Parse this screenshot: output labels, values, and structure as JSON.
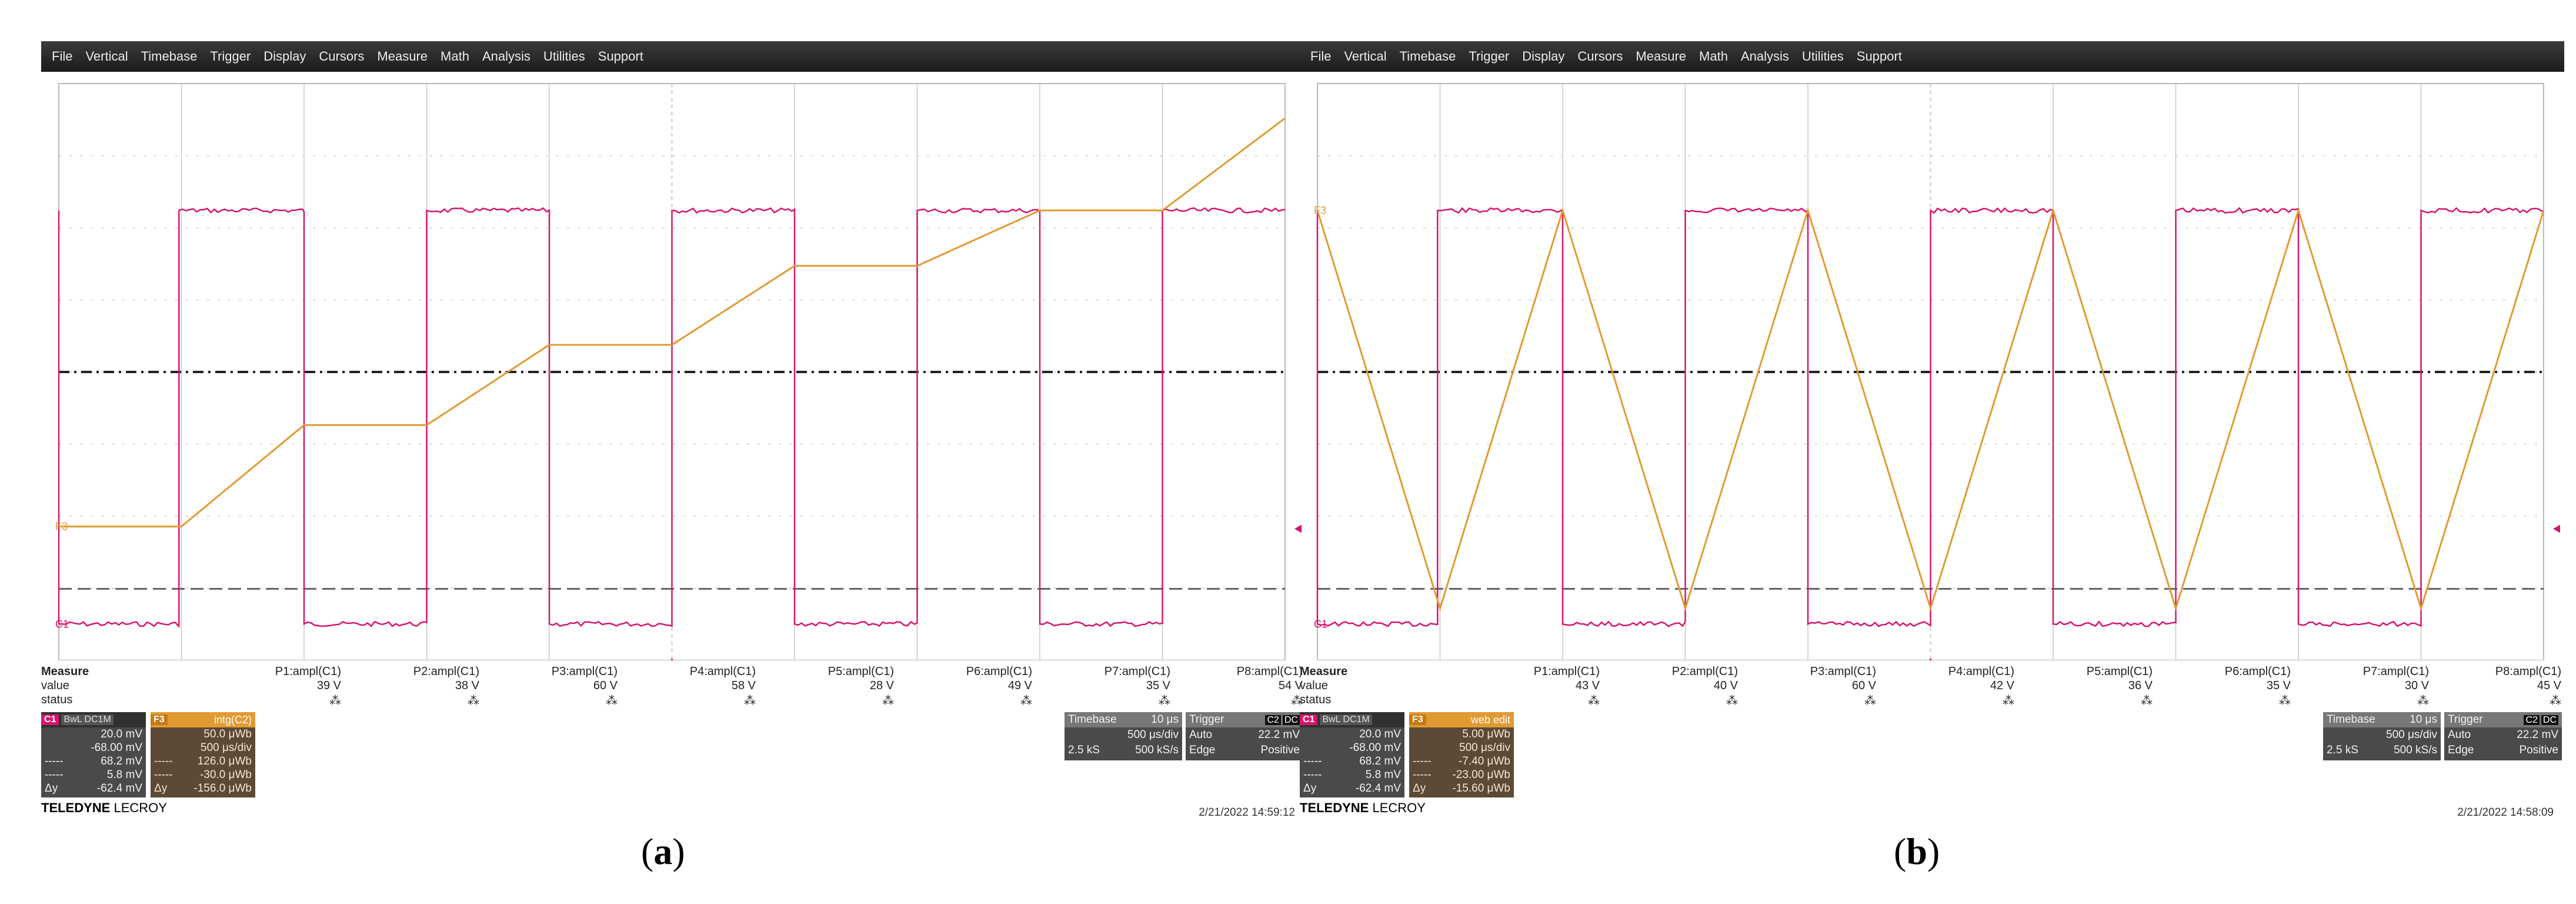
{
  "colors": {
    "c1": "#d4156e",
    "math": "#e19a32",
    "grid": "#c8c8c8",
    "menubar": "#262626"
  },
  "panels": [
    {
      "caption_letter": "a",
      "menu": [
        "File",
        "Vertical",
        "Timebase",
        "Trigger",
        "Display",
        "Cursors",
        "Measure",
        "Math",
        "Analysis",
        "Utilities",
        "Support"
      ],
      "math_mode": "staircase",
      "markers": {
        "left_math": "F3",
        "left_c1": "C1"
      },
      "measure": {
        "label": "Measure",
        "row_labels": [
          "value",
          "status"
        ],
        "params": [
          "P1:ampl(C1)",
          "P2:ampl(C1)",
          "P3:ampl(C1)",
          "P4:ampl(C1)",
          "P5:ampl(C1)",
          "P6:ampl(C1)",
          "P7:ampl(C1)",
          "P8:ampl(C1)"
        ],
        "values": [
          "39 V",
          "38 V",
          "60 V",
          "58 V",
          "28 V",
          "49 V",
          "35 V",
          "54 V"
        ]
      },
      "c1_desc": {
        "tag": "C1",
        "tag2": "BwL DC1M",
        "rows": [
          [
            "",
            "20.0 mV"
          ],
          [
            "",
            "-68.00 mV"
          ],
          [
            "-----",
            "68.2 mV"
          ],
          [
            "-----",
            "5.8 mV"
          ],
          [
            "Δy",
            "-62.4 mV"
          ]
        ]
      },
      "math_desc": {
        "tag": "F3",
        "title": "intg(C2)",
        "rows": [
          [
            "",
            "50.0 μWb"
          ],
          [
            "",
            "500 μs/div"
          ],
          [
            "-----",
            "126.0 μWb"
          ],
          [
            "-----",
            "-30.0 μWb"
          ],
          [
            "Δy",
            "-156.0 μWb"
          ]
        ]
      },
      "timebase": {
        "label": "Timebase",
        "value": "10 μs",
        "row1": [
          "",
          "500 μs/div"
        ],
        "row2": [
          "2.5 kS",
          "500 kS/s"
        ]
      },
      "trigger": {
        "label": "Trigger",
        "chips": [
          "C2",
          "DC"
        ],
        "row1": [
          "Auto",
          "22.2 mV"
        ],
        "row2": [
          "Edge",
          "Positive"
        ]
      },
      "brand": {
        "bold": "TELEDYNE",
        "rest": "LECROY"
      },
      "timestamp": "2/21/2022 14:59:12"
    },
    {
      "caption_letter": "b",
      "menu": [
        "File",
        "Vertical",
        "Timebase",
        "Trigger",
        "Display",
        "Cursors",
        "Measure",
        "Math",
        "Analysis",
        "Utilities",
        "Support"
      ],
      "math_mode": "triangle",
      "markers": {
        "left_math": "F3",
        "left_c1": "C1"
      },
      "measure": {
        "label": "Measure",
        "row_labels": [
          "value",
          "status"
        ],
        "params": [
          "P1:ampl(C1)",
          "P2:ampl(C1)",
          "P3:ampl(C1)",
          "P4:ampl(C1)",
          "P5:ampl(C1)",
          "P6:ampl(C1)",
          "P7:ampl(C1)",
          "P8:ampl(C1)"
        ],
        "values": [
          "43 V",
          "40 V",
          "60 V",
          "42 V",
          "36 V",
          "35 V",
          "30 V",
          "45 V"
        ]
      },
      "c1_desc": {
        "tag": "C1",
        "tag2": "BwL DC1M",
        "rows": [
          [
            "",
            "20.0 mV"
          ],
          [
            "",
            "-68.00 mV"
          ],
          [
            "-----",
            "68.2 mV"
          ],
          [
            "-----",
            "5.8 mV"
          ],
          [
            "Δy",
            "-62.4 mV"
          ]
        ]
      },
      "math_desc": {
        "tag": "F3",
        "title": "web edit",
        "rows": [
          [
            "",
            "5.00 μWb"
          ],
          [
            "",
            "500 μs/div"
          ],
          [
            "-----",
            "-7.40 μWb"
          ],
          [
            "-----",
            "-23.00 μWb"
          ],
          [
            "Δy",
            "-15.60 μWb"
          ]
        ]
      },
      "timebase": {
        "label": "Timebase",
        "value": "10 μs",
        "row1": [
          "",
          "500 μs/div"
        ],
        "row2": [
          "2.5 kS",
          "500 kS/s"
        ]
      },
      "trigger": {
        "label": "Trigger",
        "chips": [
          "C2",
          "DC"
        ],
        "row1": [
          "Auto",
          "22.2 mV"
        ],
        "row2": [
          "Edge",
          "Positive"
        ]
      },
      "brand": {
        "bold": "TELEDYNE",
        "rest": "LECROY"
      },
      "timestamp": "2/21/2022 14:58:09"
    }
  ]
}
